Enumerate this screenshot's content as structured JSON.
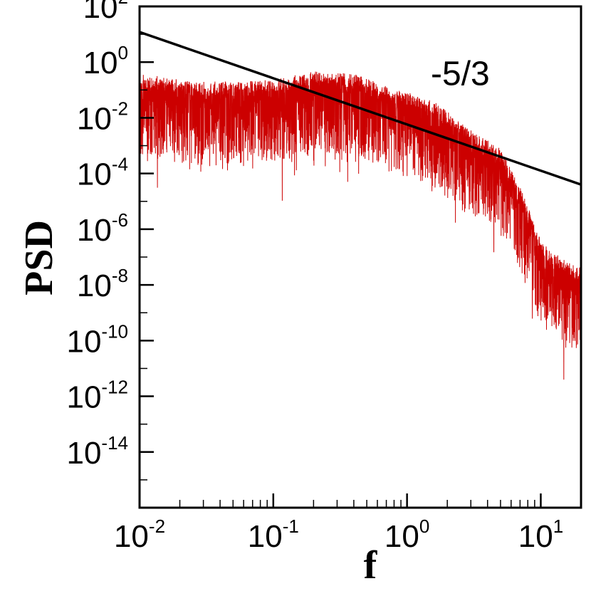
{
  "chart_data": {
    "type": "line",
    "xlabel": "f",
    "ylabel": "PSD",
    "x_scale": "log",
    "y_scale": "log",
    "xlim": [
      0.01,
      20
    ],
    "ylim": [
      1e-16,
      100
    ],
    "grid": false,
    "x_ticks": [
      {
        "value": 0.01,
        "base": "10",
        "exp": "-2"
      },
      {
        "value": 0.1,
        "base": "10",
        "exp": "-1"
      },
      {
        "value": 1,
        "base": "10",
        "exp": "0"
      },
      {
        "value": 10,
        "base": "10",
        "exp": "1"
      }
    ],
    "y_ticks": [
      {
        "value": 100,
        "base": "10",
        "exp": "2"
      },
      {
        "value": 1,
        "base": "10",
        "exp": "0"
      },
      {
        "value": 0.01,
        "base": "10",
        "exp": "-2"
      },
      {
        "value": 0.0001,
        "base": "10",
        "exp": "-4"
      },
      {
        "value": 1e-06,
        "base": "10",
        "exp": "-6"
      },
      {
        "value": 1e-08,
        "base": "10",
        "exp": "-8"
      },
      {
        "value": 1e-10,
        "base": "10",
        "exp": "-10"
      },
      {
        "value": 1e-12,
        "base": "10",
        "exp": "-12"
      },
      {
        "value": 1e-14,
        "base": "10",
        "exp": "-14"
      }
    ],
    "series": [
      {
        "color": "#cc0000",
        "envelope": [
          {
            "f": 0.01,
            "psd": 0.1
          },
          {
            "f": 0.03,
            "psd": 0.05
          },
          {
            "f": 0.1,
            "psd": 0.06
          },
          {
            "f": 0.2,
            "psd": 0.12
          },
          {
            "f": 0.4,
            "psd": 0.1
          },
          {
            "f": 0.8,
            "psd": 0.03
          },
          {
            "f": 1.5,
            "psd": 0.012
          },
          {
            "f": 3,
            "psd": 0.001
          },
          {
            "f": 5,
            "psd": 0.0002
          },
          {
            "f": 7,
            "psd": 1e-05
          },
          {
            "f": 10,
            "psd": 1e-07
          },
          {
            "f": 15,
            "psd": 2e-08
          },
          {
            "f": 20,
            "psd": 1e-08
          }
        ]
      },
      {
        "color": "#000000",
        "slope": -1.6667,
        "points": [
          {
            "f": 0.01,
            "psd": 12
          },
          {
            "f": 20,
            "psd": 4e-05
          }
        ]
      }
    ],
    "annotations": [
      {
        "text": "-5/3",
        "f": 2.5,
        "psd": 0.15
      }
    ]
  }
}
